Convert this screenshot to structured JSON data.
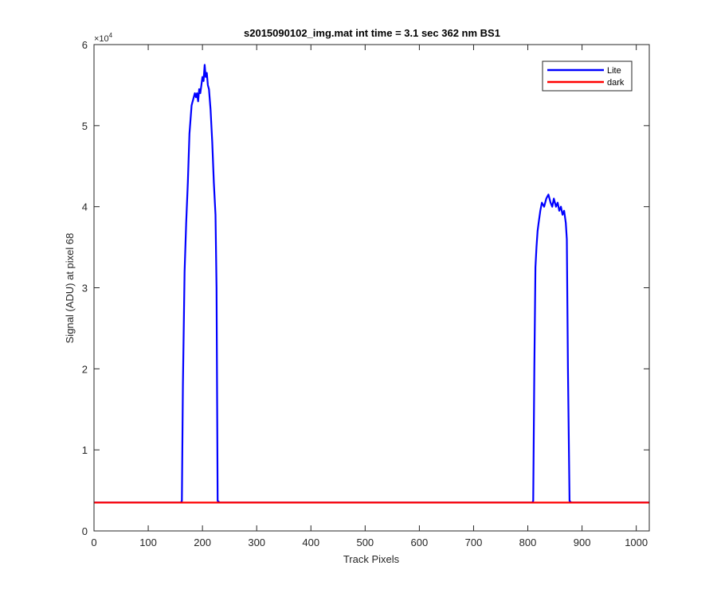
{
  "chart_data": {
    "type": "line",
    "title": "s2015090102_img.mat int time = 3.1 sec  362 nm BS1",
    "xlabel": "Track Pixels",
    "ylabel": "Signal (ADU) at pixel 68",
    "xlim": [
      0,
      1024
    ],
    "ylim": [
      0,
      60000
    ],
    "xticks": [
      0,
      100,
      200,
      300,
      400,
      500,
      600,
      700,
      800,
      900,
      1000
    ],
    "yticks": [
      0,
      10000,
      20000,
      30000,
      40000,
      50000,
      60000
    ],
    "ytick_labels": [
      "0",
      "1",
      "2",
      "3",
      "4",
      "5",
      "6"
    ],
    "y_exponent": "4",
    "grid": false,
    "legend_position": "top-right",
    "series": [
      {
        "name": "Lite",
        "color": "#0000ff",
        "x": [
          0,
          160,
          162,
          164,
          167,
          170,
          173,
          176,
          180,
          184,
          186,
          188,
          190,
          192,
          194,
          196,
          198,
          200,
          202,
          204,
          206,
          208,
          210,
          212,
          215,
          218,
          221,
          224,
          226,
          228,
          232,
          400,
          600,
          780,
          808,
          810,
          812,
          814,
          816,
          818,
          820,
          823,
          826,
          830,
          834,
          838,
          842,
          845,
          848,
          852,
          855,
          858,
          861,
          864,
          867,
          870,
          872,
          874,
          877,
          880,
          900,
          1024
        ],
        "y": [
          3500,
          3500,
          3700,
          18000,
          32000,
          38000,
          43000,
          49000,
          52500,
          53500,
          54000,
          53500,
          54000,
          53000,
          54500,
          54000,
          55000,
          56000,
          55500,
          57500,
          56000,
          56500,
          55000,
          54500,
          52000,
          48000,
          43000,
          39000,
          30000,
          3700,
          3500,
          3500,
          3500,
          3500,
          3500,
          3700,
          20000,
          32500,
          35000,
          37000,
          38000,
          39500,
          40500,
          40000,
          41000,
          41500,
          40500,
          40000,
          41000,
          40000,
          40500,
          39500,
          40000,
          39000,
          39500,
          38000,
          36000,
          20000,
          3700,
          3500,
          3500,
          3500
        ]
      },
      {
        "name": "dark",
        "color": "#ff0000",
        "x": [
          0,
          1024
        ],
        "y": [
          3500,
          3500
        ]
      }
    ]
  }
}
